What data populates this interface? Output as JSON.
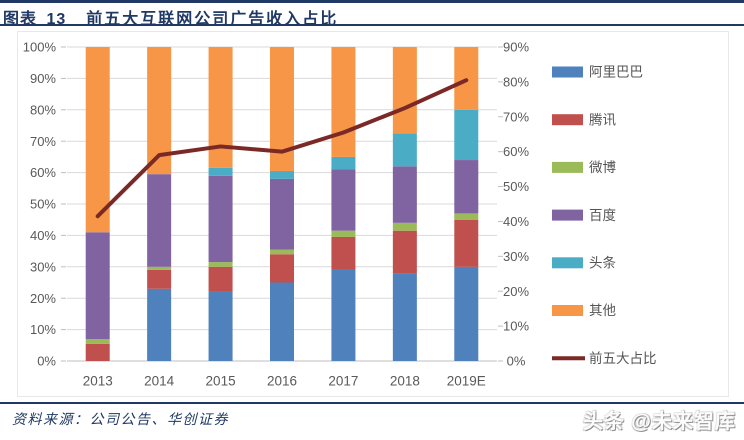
{
  "header": {
    "figure_label": "图表 13",
    "title": "前五大互联网公司广告收入占比"
  },
  "footer": {
    "source": "资料来源：公司公告、华创证券",
    "watermark": "头条 @未来智库"
  },
  "colors": {
    "accent": "#1F3864",
    "axis_text": "#595959",
    "gridline": "#D9D9D9",
    "axis_line": "#BFBFBF",
    "legend_text": "#555555",
    "chart_border": "#E8E8E8"
  },
  "chart_data": {
    "type": "bar",
    "subtype": "stacked-100pct-columns-with-line",
    "title": "前五大互联网公司广告收入占比",
    "categories": [
      "2013",
      "2014",
      "2015",
      "2016",
      "2017",
      "2018",
      "2019E"
    ],
    "series": [
      {
        "key": "alibaba",
        "name": "阿里巴巴",
        "color": "#4F81BD",
        "values": [
          0,
          23,
          22,
          25,
          29,
          28,
          30
        ]
      },
      {
        "key": "tencent",
        "name": "腾讯",
        "color": "#C0504D",
        "values": [
          5.5,
          6,
          8,
          9,
          10.5,
          13.5,
          15
        ]
      },
      {
        "key": "weibo",
        "name": "微博",
        "color": "#9BBB59",
        "values": [
          1.5,
          1,
          1.5,
          1.5,
          2,
          2.5,
          2
        ]
      },
      {
        "key": "baidu",
        "name": "百度",
        "color": "#8064A2",
        "values": [
          34,
          29.5,
          27.5,
          22.5,
          19.5,
          18,
          17
        ]
      },
      {
        "key": "toutiao",
        "name": "头条",
        "color": "#4BACC6",
        "values": [
          0,
          0,
          2.5,
          2.5,
          4,
          10.5,
          16
        ]
      },
      {
        "key": "others",
        "name": "其他",
        "color": "#F79646",
        "values": [
          59,
          40.5,
          38.5,
          39.5,
          35,
          27.5,
          20
        ]
      }
    ],
    "line_series": {
      "key": "top5-share",
      "name": "前五大占比",
      "color": "#7B2927",
      "values": [
        41.5,
        59,
        61.5,
        60,
        65.5,
        72.5,
        80.5
      ]
    },
    "left_axis": {
      "min": 0,
      "max": 100,
      "step": 10,
      "ticks": [
        "0%",
        "10%",
        "20%",
        "30%",
        "40%",
        "50%",
        "60%",
        "70%",
        "80%",
        "90%",
        "100%"
      ]
    },
    "right_axis": {
      "min": 0,
      "max": 90,
      "step": 10,
      "ticks": [
        "0%",
        "10%",
        "20%",
        "30%",
        "40%",
        "50%",
        "60%",
        "70%",
        "80%",
        "90%"
      ]
    },
    "grid": true,
    "legend_position": "right"
  }
}
